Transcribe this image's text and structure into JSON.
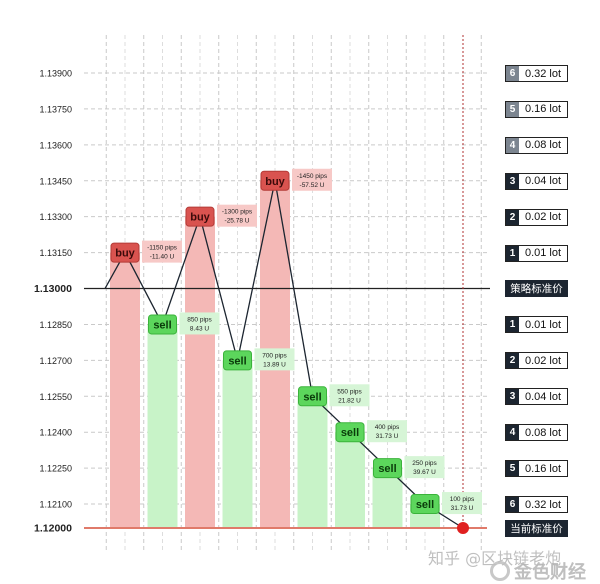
{
  "chart_data": {
    "type": "bar",
    "y_ticks": [
      "1.13900",
      "1.13750",
      "1.13600",
      "1.13450",
      "1.13300",
      "1.13150",
      "1.13000",
      "1.12850",
      "1.12700",
      "1.12550",
      "1.12400",
      "1.12250",
      "1.12100",
      "1.12000"
    ],
    "ylim": [
      1.12,
      1.1395
    ],
    "strategy_baseline": 1.13,
    "current_price": 1.12,
    "bars": [
      {
        "action": "buy",
        "value": 1.1315,
        "pips": "-1150 pips",
        "pnl": "-11.40 U"
      },
      {
        "action": "sell",
        "value": 1.1285,
        "pips": "850 pips",
        "pnl": "8.43 U"
      },
      {
        "action": "buy",
        "value": 1.133,
        "pips": "-1300 pips",
        "pnl": "-25.78 U"
      },
      {
        "action": "sell",
        "value": 1.127,
        "pips": "700 pips",
        "pnl": "13.89 U"
      },
      {
        "action": "buy",
        "value": 1.1345,
        "pips": "-1450 pips",
        "pnl": "-57.52 U"
      },
      {
        "action": "sell",
        "value": 1.1255,
        "pips": "550 pips",
        "pnl": "21.82 U"
      },
      {
        "action": "sell",
        "value": 1.124,
        "pips": "400 pips",
        "pnl": "31.73 U"
      },
      {
        "action": "sell",
        "value": 1.1225,
        "pips": "250 pips",
        "pnl": "39.67 U"
      },
      {
        "action": "sell",
        "value": 1.121,
        "pips": "100 pips",
        "pnl": "31.73 U"
      }
    ],
    "colors": {
      "buy": "#d9534f",
      "sell": "#5cd65c",
      "buy_fill": "#f4b8b6",
      "sell_fill": "#c8f3c8",
      "current_price": "#e02020"
    },
    "grid": true
  },
  "right_panel": {
    "upper_lots": [
      {
        "num": "6",
        "lot": "0.32 lot",
        "price": 1.139
      },
      {
        "num": "5",
        "lot": "0.16 lot",
        "price": 1.1375
      },
      {
        "num": "4",
        "lot": "0.08 lot",
        "price": 1.136
      },
      {
        "num": "3",
        "lot": "0.04 lot",
        "price": 1.1345
      },
      {
        "num": "2",
        "lot": "0.02 lot",
        "price": 1.133
      },
      {
        "num": "1",
        "lot": "0.01 lot",
        "price": 1.1315
      }
    ],
    "baseline_label": "策略标准价",
    "lower_lots": [
      {
        "num": "1",
        "lot": "0.01 lot",
        "price": 1.1285
      },
      {
        "num": "2",
        "lot": "0.02 lot",
        "price": 1.127
      },
      {
        "num": "3",
        "lot": "0.04 lot",
        "price": 1.1255
      },
      {
        "num": "4",
        "lot": "0.08 lot",
        "price": 1.124
      },
      {
        "num": "5",
        "lot": "0.16 lot",
        "price": 1.1225
      },
      {
        "num": "6",
        "lot": "0.32 lot",
        "price": 1.121
      }
    ],
    "current_label": "当前标准价"
  },
  "watermark": {
    "zhihu": "知乎 @区块链老炮",
    "brand": "金色财经"
  }
}
